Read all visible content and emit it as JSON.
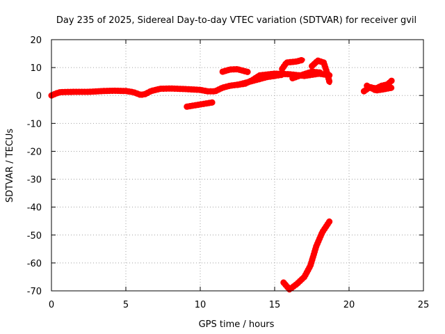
{
  "chart_data": {
    "type": "line",
    "title": "Day 235 of 2025, Sidereal Day-to-day VTEC variation (SDTVAR) for receiver gvil",
    "xlabel": "GPS time / hours",
    "ylabel": "SDTVAR / TECUs",
    "xlim": [
      0,
      25
    ],
    "ylim": [
      -70,
      20
    ],
    "xticks": [
      "0",
      "5",
      "10",
      "15",
      "20",
      "25"
    ],
    "yticks": [
      "20",
      "10",
      "0",
      "-10",
      "-20",
      "-30",
      "-40",
      "-50",
      "-60",
      "-70"
    ],
    "grid": true,
    "series_color": "#ff0000",
    "series": [
      {
        "name": "main",
        "points": [
          [
            0,
            0
          ],
          [
            0.3,
            0.7
          ],
          [
            0.6,
            1.2
          ],
          [
            1.5,
            1.3
          ],
          [
            2.5,
            1.3
          ],
          [
            3.5,
            1.6
          ],
          [
            4.2,
            1.7
          ],
          [
            5,
            1.6
          ],
          [
            5.5,
            1.2
          ],
          [
            6,
            0.2
          ],
          [
            6.3,
            0.5
          ],
          [
            6.7,
            1.6
          ],
          [
            7.3,
            2.4
          ],
          [
            8,
            2.5
          ],
          [
            9,
            2.3
          ],
          [
            10,
            2
          ],
          [
            10.5,
            1.5
          ],
          [
            11,
            1.5
          ],
          [
            11.5,
            2.8
          ],
          [
            12,
            3.5
          ],
          [
            13,
            4.2
          ],
          [
            13.5,
            5.5
          ],
          [
            14,
            7.2
          ],
          [
            15,
            7.8
          ],
          [
            16,
            7.6
          ],
          [
            17,
            7
          ],
          [
            18,
            7.8
          ],
          [
            18.7,
            7.2
          ]
        ]
      },
      {
        "name": "segment-negative-offset",
        "points": [
          [
            9.1,
            -4
          ],
          [
            10,
            -3.2
          ],
          [
            10.8,
            -2.5
          ]
        ]
      },
      {
        "name": "segment-upper-11-13",
        "points": [
          [
            11.5,
            8.5
          ],
          [
            12,
            9.3
          ],
          [
            12.5,
            9.4
          ],
          [
            13.2,
            8.4
          ]
        ]
      },
      {
        "name": "segment-upper-15-16",
        "points": [
          [
            15.5,
            9.5
          ],
          [
            15.8,
            11.8
          ],
          [
            16.5,
            12.2
          ],
          [
            16.9,
            12.8
          ]
        ]
      },
      {
        "name": "segment-arc-17-19",
        "points": [
          [
            17.5,
            10.5
          ],
          [
            17.9,
            12.5
          ],
          [
            18.3,
            11.8
          ],
          [
            18.5,
            8.5
          ],
          [
            18.7,
            4.5
          ]
        ]
      },
      {
        "name": "segment-upper-mid",
        "points": [
          [
            16.2,
            6.2
          ],
          [
            16.8,
            7.3
          ],
          [
            17.5,
            8.5
          ],
          [
            18.1,
            8.2
          ]
        ]
      },
      {
        "name": "segment-lower-mid",
        "points": [
          [
            12.5,
            3.8
          ],
          [
            13.5,
            5.2
          ],
          [
            14.5,
            6.6
          ],
          [
            15.5,
            7.4
          ]
        ]
      },
      {
        "name": "segment-drop",
        "points": [
          [
            15.6,
            -67
          ],
          [
            16,
            -69.5
          ],
          [
            16.5,
            -67.5
          ],
          [
            17,
            -65
          ],
          [
            17.4,
            -61
          ],
          [
            17.8,
            -54
          ],
          [
            18.2,
            -49
          ],
          [
            18.7,
            -45
          ]
        ]
      },
      {
        "name": "segment-late-21-23",
        "points": [
          [
            21,
            1.5
          ],
          [
            21.4,
            3
          ],
          [
            21.8,
            2.5
          ],
          [
            22.2,
            3.5
          ],
          [
            22.6,
            4
          ],
          [
            22.9,
            5.5
          ]
        ]
      },
      {
        "name": "segment-late-21-23-b",
        "points": [
          [
            21.2,
            3.5
          ],
          [
            21.8,
            1.8
          ],
          [
            22.3,
            2.2
          ],
          [
            22.9,
            2.8
          ]
        ]
      }
    ]
  }
}
